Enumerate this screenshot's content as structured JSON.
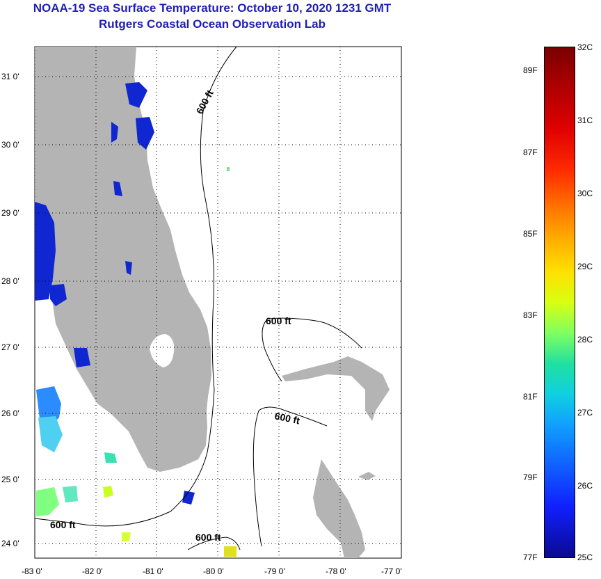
{
  "title": {
    "line1": "NOAA-19 Sea Surface Temperature:  October 10, 2020 1231 GMT",
    "line2": "Rutgers Coastal Ocean Observation Lab"
  },
  "map": {
    "lat_labels": [
      "31 0'",
      "30 0'",
      "29 0'",
      "28 0'",
      "27 0'",
      "26 0'",
      "25 0'",
      "24 0'"
    ],
    "lon_labels": [
      "-83 0'",
      "-82 0'",
      "-81 0'",
      "-80 0'",
      "-79 0'",
      "-78 0'",
      "-77 0'"
    ],
    "contour_label": "600 ft",
    "colors": {
      "land": "#b4b4b4",
      "water_cold": "#1020c8",
      "grid": "#000000"
    }
  },
  "colorbar": {
    "fahrenheit": [
      "89F",
      "87F",
      "85F",
      "83F",
      "81F",
      "79F",
      "77F"
    ],
    "celsius": [
      "32C",
      "31C",
      "30C",
      "29C",
      "28C",
      "27C",
      "26C",
      "25C"
    ]
  }
}
